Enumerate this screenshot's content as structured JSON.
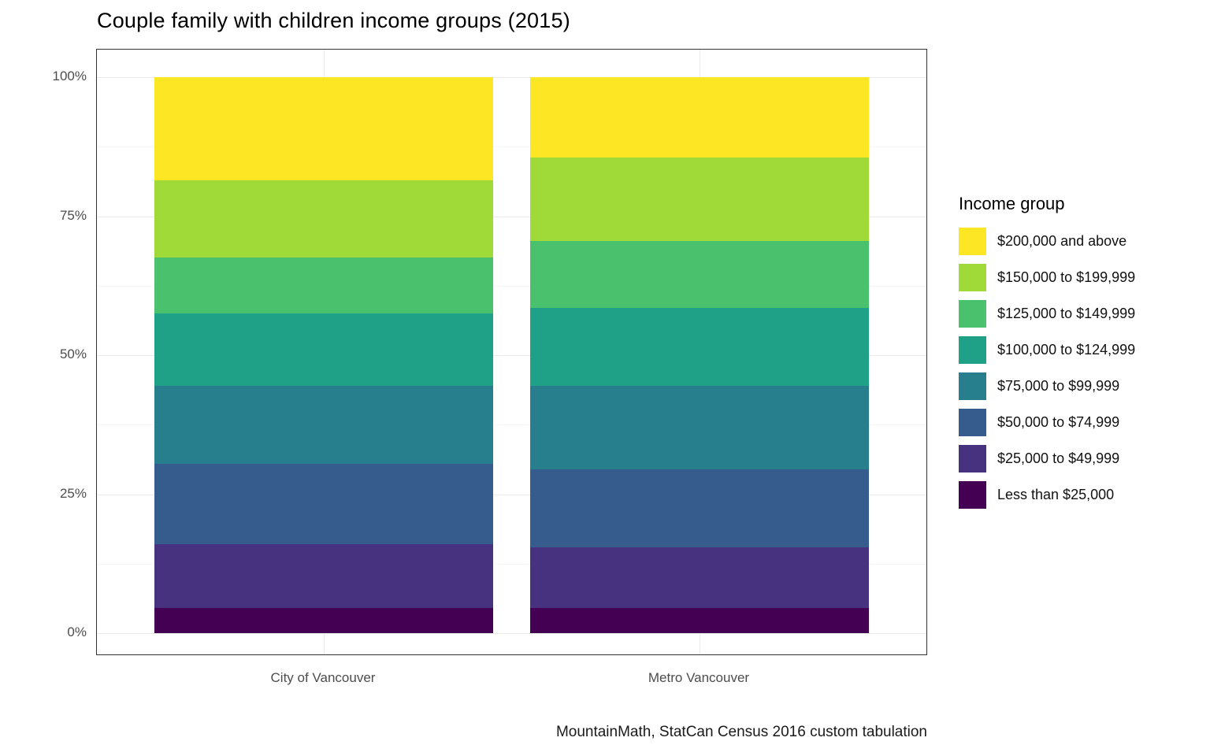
{
  "title": "Couple family with children income groups (2015)",
  "caption": "MountainMath, StatCan Census 2016 custom tabulation",
  "legend": {
    "title": "Income group"
  },
  "chart_data": {
    "type": "bar",
    "stacked": true,
    "units": "percent",
    "title": "Couple family with children income groups (2015)",
    "categories": [
      "City of Vancouver",
      "Metro Vancouver"
    ],
    "yticks": [
      "0%",
      "25%",
      "50%",
      "75%",
      "100%"
    ],
    "ylim": [
      0,
      100
    ],
    "grid": true,
    "legend_position": "right",
    "series": [
      {
        "name": "$200,000 and above",
        "color": "#FDE725",
        "values": [
          18.5,
          14.5
        ]
      },
      {
        "name": "$150,000 to $199,999",
        "color": "#A0DA39",
        "values": [
          14.0,
          15.0
        ]
      },
      {
        "name": "$125,000 to $149,999",
        "color": "#4AC16D",
        "values": [
          10.0,
          12.0
        ]
      },
      {
        "name": "$100,000 to $124,999",
        "color": "#1FA187",
        "values": [
          13.0,
          14.0
        ]
      },
      {
        "name": "$75,000 to $99,999",
        "color": "#277F8E",
        "values": [
          14.0,
          15.0
        ]
      },
      {
        "name": "$50,000 to $74,999",
        "color": "#365C8D",
        "values": [
          14.5,
          14.0
        ]
      },
      {
        "name": "$25,000 to $49,999",
        "color": "#46327E",
        "values": [
          11.5,
          11.0
        ]
      },
      {
        "name": "Less than $25,000",
        "color": "#440154",
        "values": [
          4.5,
          4.5
        ]
      }
    ]
  }
}
